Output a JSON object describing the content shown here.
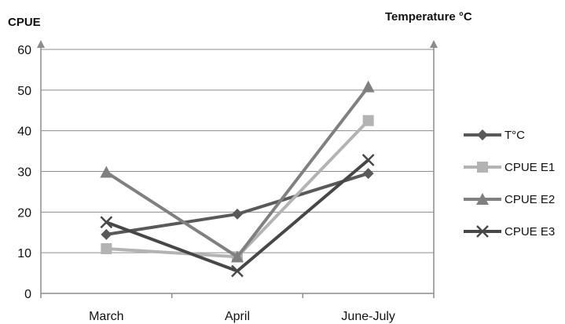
{
  "chart_data": {
    "type": "line",
    "ylabel_left": "CPUE",
    "ylabel_right": "Temperature °C",
    "categories": [
      "March",
      "April",
      "June-July"
    ],
    "ylim": [
      0,
      60
    ],
    "yticks": [
      0,
      10,
      20,
      30,
      40,
      50,
      60
    ],
    "grid": true,
    "legend_position": "right",
    "series": [
      {
        "name": "T°C",
        "values": [
          14.5,
          19.5,
          29.5
        ],
        "color": "#595959",
        "marker": "diamond"
      },
      {
        "name": "CPUE E1",
        "values": [
          11,
          9,
          42.5
        ],
        "color": "#b3b3b3",
        "marker": "square"
      },
      {
        "name": "CPUE E2",
        "values": [
          29.8,
          9,
          50.8
        ],
        "color": "#808080",
        "marker": "triangle"
      },
      {
        "name": "CPUE E3",
        "values": [
          17.5,
          5.5,
          32.8
        ],
        "color": "#474747",
        "marker": "x"
      }
    ]
  }
}
